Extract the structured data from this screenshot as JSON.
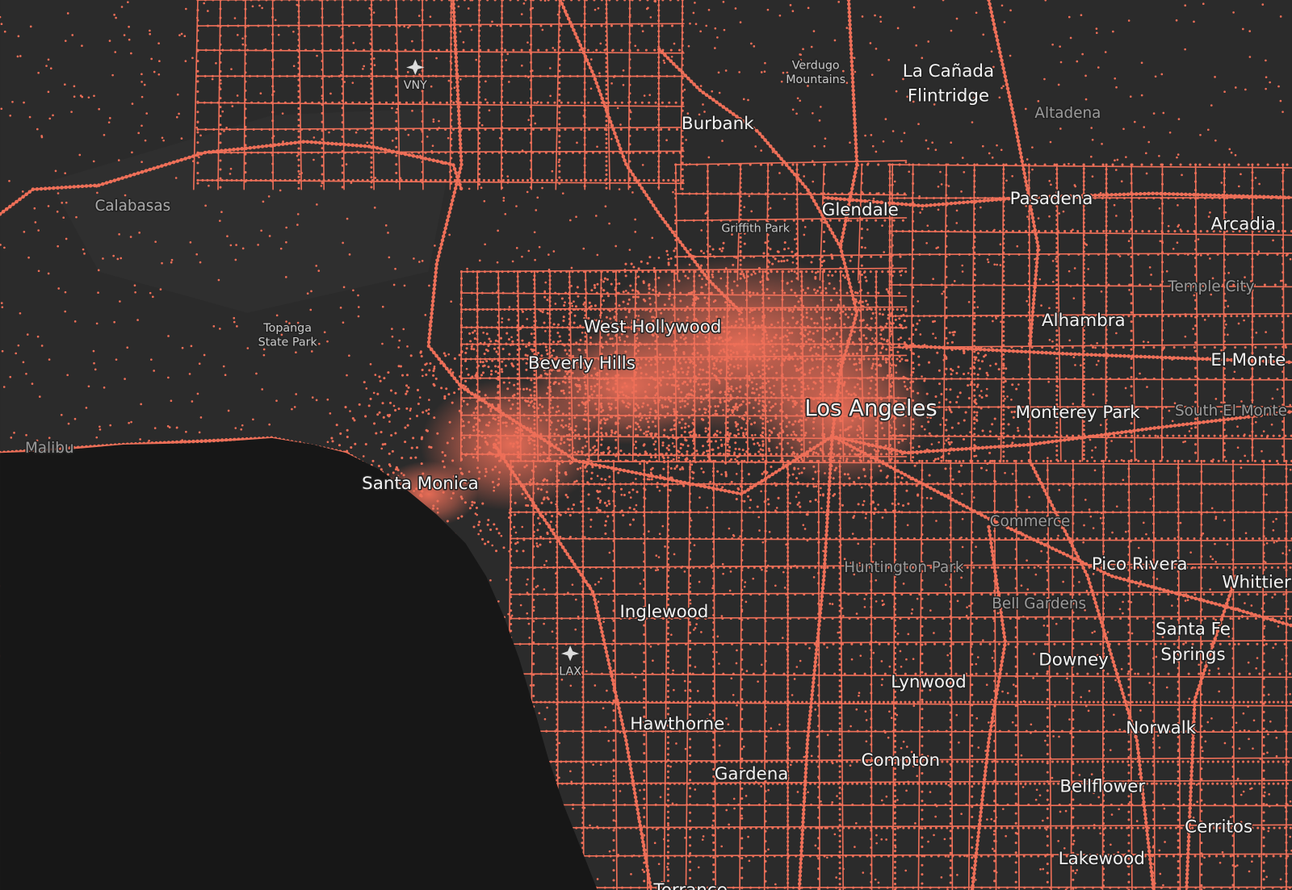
{
  "map": {
    "places": [
      {
        "name": "VNY"
      },
      {
        "name": "Verdugo"
      },
      {
        "name": "Mountains"
      },
      {
        "name": "La Cañada"
      },
      {
        "name": "Flintridge"
      },
      {
        "name": "Burbank"
      },
      {
        "name": "Altadena"
      },
      {
        "name": "Calabasas"
      },
      {
        "name": "Griffith Park"
      },
      {
        "name": "Glendale"
      },
      {
        "name": "Pasadena"
      },
      {
        "name": "Arcadia"
      },
      {
        "name": "Temple City"
      },
      {
        "name": "Topanga"
      },
      {
        "name": "State Park"
      },
      {
        "name": "West Hollywood"
      },
      {
        "name": "Alhambra"
      },
      {
        "name": "Beverly Hills"
      },
      {
        "name": "El Monte"
      },
      {
        "name": "Los Angeles"
      },
      {
        "name": "Monterey Park"
      },
      {
        "name": "South El Monte"
      },
      {
        "name": "Malibu"
      },
      {
        "name": "Santa Monica"
      },
      {
        "name": "Commerce"
      },
      {
        "name": "Pico Rivera"
      },
      {
        "name": "Huntington Park"
      },
      {
        "name": "Whittier"
      },
      {
        "name": "Inglewood"
      },
      {
        "name": "Bell Gardens"
      },
      {
        "name": "Santa Fe"
      },
      {
        "name": "Springs"
      },
      {
        "name": "LAX"
      },
      {
        "name": "Downey"
      },
      {
        "name": "Lynwood"
      },
      {
        "name": "Hawthorne"
      },
      {
        "name": "Norwalk"
      },
      {
        "name": "Compton"
      },
      {
        "name": "Gardena"
      },
      {
        "name": "Bellflower"
      },
      {
        "name": "Cerritos"
      },
      {
        "name": "Lakewood"
      },
      {
        "name": "Torrance"
      }
    ]
  }
}
